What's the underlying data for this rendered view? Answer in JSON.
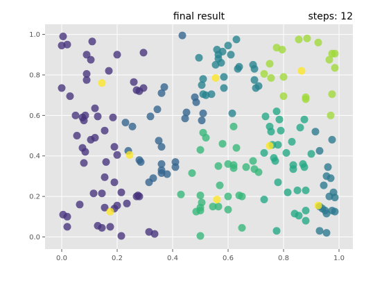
{
  "header": {
    "title": "final result",
    "steps": "steps: 12"
  },
  "chart_data": {
    "type": "scatter",
    "title": "final result",
    "subtitle": "steps: 12",
    "xlabel": "",
    "ylabel": "",
    "xlim": [
      -0.06,
      1.05
    ],
    "ylim": [
      -0.06,
      1.05
    ],
    "xticks": [
      0.0,
      0.2,
      0.4,
      0.6,
      0.8,
      1.0
    ],
    "yticks": [
      0.0,
      0.2,
      0.4,
      0.6,
      0.8,
      1.0
    ],
    "xtick_labels": [
      "0.0",
      "0.2",
      "0.4",
      "0.6",
      "0.8",
      "1.0"
    ],
    "ytick_labels": [
      "0.0",
      "0.2",
      "0.4",
      "0.6",
      "0.8",
      "1.0"
    ],
    "grid": true,
    "background": "#e5e5e5",
    "grid_color": "#ffffff",
    "marker_alpha": 0.78,
    "colormap": "viridis",
    "points": [
      {
        "x": 0.005,
        "y": 0.99,
        "color": "#46337e"
      },
      {
        "x": 0.02,
        "y": 0.95,
        "color": "#46337e"
      },
      {
        "x": 0.0,
        "y": 0.945,
        "color": "#46337e"
      },
      {
        "x": 0.11,
        "y": 0.965,
        "color": "#46337e"
      },
      {
        "x": 0.2,
        "y": 0.9,
        "color": "#46337e"
      },
      {
        "x": 0.09,
        "y": 0.9,
        "color": "#46337e"
      },
      {
        "x": 0.105,
        "y": 0.875,
        "color": "#46337e"
      },
      {
        "x": 0.295,
        "y": 0.91,
        "color": "#46337e"
      },
      {
        "x": 0.17,
        "y": 0.82,
        "color": "#46337e"
      },
      {
        "x": 0.09,
        "y": 0.805,
        "color": "#46337e"
      },
      {
        "x": 0.09,
        "y": 0.775,
        "color": "#46337e"
      },
      {
        "x": 0.0,
        "y": 0.735,
        "color": "#46337e"
      },
      {
        "x": 0.03,
        "y": 0.695,
        "color": "#46337e"
      },
      {
        "x": 0.26,
        "y": 0.765,
        "color": "#46337e"
      },
      {
        "x": 0.27,
        "y": 0.725,
        "color": "#46337e"
      },
      {
        "x": 0.28,
        "y": 0.72,
        "color": "#46337e"
      },
      {
        "x": 0.295,
        "y": 0.735,
        "color": "#46337e"
      },
      {
        "x": 0.12,
        "y": 0.635,
        "color": "#46337e"
      },
      {
        "x": 0.05,
        "y": 0.6,
        "color": "#46337e"
      },
      {
        "x": 0.075,
        "y": 0.59,
        "color": "#46337e"
      },
      {
        "x": 0.085,
        "y": 0.6,
        "color": "#46337e"
      },
      {
        "x": 0.08,
        "y": 0.575,
        "color": "#46337e"
      },
      {
        "x": 0.13,
        "y": 0.595,
        "color": "#46337e"
      },
      {
        "x": 0.185,
        "y": 0.59,
        "color": "#46337e"
      },
      {
        "x": 0.155,
        "y": 0.525,
        "color": "#46337e"
      },
      {
        "x": 0.055,
        "y": 0.5,
        "color": "#46337e"
      },
      {
        "x": 0.105,
        "y": 0.48,
        "color": "#46337e"
      },
      {
        "x": 0.12,
        "y": 0.49,
        "color": "#46337e"
      },
      {
        "x": 0.075,
        "y": 0.44,
        "color": "#46337e"
      },
      {
        "x": 0.085,
        "y": 0.42,
        "color": "#46337e"
      },
      {
        "x": 0.08,
        "y": 0.365,
        "color": "#46337e"
      },
      {
        "x": 0.19,
        "y": 0.445,
        "color": "#46337e"
      },
      {
        "x": 0.16,
        "y": 0.37,
        "color": "#46337e"
      },
      {
        "x": 0.2,
        "y": 0.405,
        "color": "#46337e"
      },
      {
        "x": 0.155,
        "y": 0.295,
        "color": "#46337e"
      },
      {
        "x": 0.19,
        "y": 0.27,
        "color": "#46337e"
      },
      {
        "x": 0.02,
        "y": 0.1,
        "color": "#46337e"
      },
      {
        "x": 0.005,
        "y": 0.11,
        "color": "#46337e"
      },
      {
        "x": 0.02,
        "y": 0.05,
        "color": "#46337e"
      },
      {
        "x": 0.065,
        "y": 0.16,
        "color": "#46337e"
      },
      {
        "x": 0.115,
        "y": 0.215,
        "color": "#46337e"
      },
      {
        "x": 0.145,
        "y": 0.215,
        "color": "#46337e"
      },
      {
        "x": 0.215,
        "y": 0.22,
        "color": "#46337e"
      },
      {
        "x": 0.235,
        "y": 0.165,
        "color": "#46337e"
      },
      {
        "x": 0.2,
        "y": 0.155,
        "color": "#46337e"
      },
      {
        "x": 0.19,
        "y": 0.14,
        "color": "#46337e"
      },
      {
        "x": 0.155,
        "y": 0.145,
        "color": "#46337e"
      },
      {
        "x": 0.13,
        "y": 0.055,
        "color": "#46337e"
      },
      {
        "x": 0.145,
        "y": 0.045,
        "color": "#46337e"
      },
      {
        "x": 0.175,
        "y": 0.05,
        "color": "#46337e"
      },
      {
        "x": 0.215,
        "y": 0.005,
        "color": "#46337e"
      },
      {
        "x": 0.27,
        "y": 0.2,
        "color": "#46337e"
      },
      {
        "x": 0.275,
        "y": 0.205,
        "color": "#46337e"
      },
      {
        "x": 0.28,
        "y": 0.2,
        "color": "#46337e"
      },
      {
        "x": 0.315,
        "y": 0.025,
        "color": "#46337e"
      },
      {
        "x": 0.335,
        "y": 0.015,
        "color": "#46337e"
      },
      {
        "x": 0.23,
        "y": 0.565,
        "color": "#32648e"
      },
      {
        "x": 0.255,
        "y": 0.545,
        "color": "#32648e"
      },
      {
        "x": 0.32,
        "y": 0.595,
        "color": "#32648e"
      },
      {
        "x": 0.345,
        "y": 0.63,
        "color": "#32648e"
      },
      {
        "x": 0.36,
        "y": 0.71,
        "color": "#32648e"
      },
      {
        "x": 0.37,
        "y": 0.74,
        "color": "#32648e"
      },
      {
        "x": 0.35,
        "y": 0.475,
        "color": "#32648e"
      },
      {
        "x": 0.36,
        "y": 0.445,
        "color": "#32648e"
      },
      {
        "x": 0.24,
        "y": 0.425,
        "color": "#32648e"
      },
      {
        "x": 0.28,
        "y": 0.38,
        "color": "#32648e"
      },
      {
        "x": 0.285,
        "y": 0.37,
        "color": "#32648e"
      },
      {
        "x": 0.36,
        "y": 0.36,
        "color": "#32648e"
      },
      {
        "x": 0.36,
        "y": 0.33,
        "color": "#32648e"
      },
      {
        "x": 0.36,
        "y": 0.315,
        "color": "#32648e"
      },
      {
        "x": 0.38,
        "y": 0.31,
        "color": "#32648e"
      },
      {
        "x": 0.41,
        "y": 0.345,
        "color": "#32648e"
      },
      {
        "x": 0.41,
        "y": 0.37,
        "color": "#32648e"
      },
      {
        "x": 0.33,
        "y": 0.29,
        "color": "#32648e"
      },
      {
        "x": 0.315,
        "y": 0.27,
        "color": "#32648e"
      },
      {
        "x": 0.435,
        "y": 0.995,
        "color": "#32648e"
      },
      {
        "x": 0.445,
        "y": 0.585,
        "color": "#32648e"
      },
      {
        "x": 0.45,
        "y": 0.615,
        "color": "#32648e"
      },
      {
        "x": 0.48,
        "y": 0.69,
        "color": "#32648e"
      },
      {
        "x": 0.485,
        "y": 0.665,
        "color": "#32648e"
      },
      {
        "x": 0.505,
        "y": 0.575,
        "color": "#32648e"
      },
      {
        "x": 0.51,
        "y": 0.61,
        "color": "#32648e"
      },
      {
        "x": 0.495,
        "y": 0.885,
        "color": "#25838e"
      },
      {
        "x": 0.505,
        "y": 0.75,
        "color": "#25838e"
      },
      {
        "x": 0.51,
        "y": 0.78,
        "color": "#25838e"
      },
      {
        "x": 0.51,
        "y": 0.705,
        "color": "#25838e"
      },
      {
        "x": 0.52,
        "y": 0.7,
        "color": "#25838e"
      },
      {
        "x": 0.54,
        "y": 0.705,
        "color": "#25838e"
      },
      {
        "x": 0.56,
        "y": 0.925,
        "color": "#25838e"
      },
      {
        "x": 0.565,
        "y": 0.9,
        "color": "#25838e"
      },
      {
        "x": 0.58,
        "y": 0.915,
        "color": "#25838e"
      },
      {
        "x": 0.555,
        "y": 0.85,
        "color": "#25838e"
      },
      {
        "x": 0.575,
        "y": 0.86,
        "color": "#25838e"
      },
      {
        "x": 0.565,
        "y": 0.88,
        "color": "#25838e"
      },
      {
        "x": 0.6,
        "y": 0.945,
        "color": "#25838e"
      },
      {
        "x": 0.61,
        "y": 0.9,
        "color": "#25838e"
      },
      {
        "x": 0.63,
        "y": 0.975,
        "color": "#25838e"
      },
      {
        "x": 0.635,
        "y": 0.83,
        "color": "#25838e"
      },
      {
        "x": 0.64,
        "y": 0.84,
        "color": "#25838e"
      },
      {
        "x": 0.585,
        "y": 0.79,
        "color": "#25838e"
      },
      {
        "x": 0.585,
        "y": 0.735,
        "color": "#25838e"
      },
      {
        "x": 0.615,
        "y": 0.61,
        "color": "#25838e"
      },
      {
        "x": 0.69,
        "y": 0.85,
        "color": "#25838e"
      },
      {
        "x": 0.695,
        "y": 0.83,
        "color": "#25838e"
      },
      {
        "x": 0.695,
        "y": 0.775,
        "color": "#25838e"
      },
      {
        "x": 0.7,
        "y": 0.735,
        "color": "#25838e"
      },
      {
        "x": 0.71,
        "y": 0.745,
        "color": "#25838e"
      },
      {
        "x": 0.5,
        "y": 0.43,
        "color": "#35b779"
      },
      {
        "x": 0.51,
        "y": 0.515,
        "color": "#35b779"
      },
      {
        "x": 0.52,
        "y": 0.49,
        "color": "#35b779"
      },
      {
        "x": 0.58,
        "y": 0.46,
        "color": "#35b779"
      },
      {
        "x": 0.62,
        "y": 0.545,
        "color": "#35b779"
      },
      {
        "x": 0.63,
        "y": 0.44,
        "color": "#35b779"
      },
      {
        "x": 0.565,
        "y": 0.35,
        "color": "#35b779"
      },
      {
        "x": 0.6,
        "y": 0.36,
        "color": "#35b779"
      },
      {
        "x": 0.62,
        "y": 0.34,
        "color": "#35b779"
      },
      {
        "x": 0.62,
        "y": 0.355,
        "color": "#35b779"
      },
      {
        "x": 0.665,
        "y": 0.345,
        "color": "#35b779"
      },
      {
        "x": 0.69,
        "y": 0.375,
        "color": "#35b779"
      },
      {
        "x": 0.695,
        "y": 0.335,
        "color": "#35b779"
      },
      {
        "x": 0.71,
        "y": 0.32,
        "color": "#35b779"
      },
      {
        "x": 0.57,
        "y": 0.255,
        "color": "#35b779"
      },
      {
        "x": 0.47,
        "y": 0.315,
        "color": "#35b779"
      },
      {
        "x": 0.43,
        "y": 0.21,
        "color": "#35b779"
      },
      {
        "x": 0.5,
        "y": 0.205,
        "color": "#35b779"
      },
      {
        "x": 0.505,
        "y": 0.17,
        "color": "#35b779"
      },
      {
        "x": 0.5,
        "y": 0.145,
        "color": "#35b779"
      },
      {
        "x": 0.5,
        "y": 0.13,
        "color": "#35b779"
      },
      {
        "x": 0.485,
        "y": 0.125,
        "color": "#35b779"
      },
      {
        "x": 0.545,
        "y": 0.15,
        "color": "#35b779"
      },
      {
        "x": 0.565,
        "y": 0.15,
        "color": "#35b779"
      },
      {
        "x": 0.6,
        "y": 0.2,
        "color": "#35b779"
      },
      {
        "x": 0.6,
        "y": 0.135,
        "color": "#35b779"
      },
      {
        "x": 0.64,
        "y": 0.205,
        "color": "#35b779"
      },
      {
        "x": 0.65,
        "y": 0.2,
        "color": "#35b779"
      },
      {
        "x": 0.5,
        "y": 0.005,
        "color": "#35b779"
      },
      {
        "x": 0.65,
        "y": 0.045,
        "color": "#35b779"
      },
      {
        "x": 0.73,
        "y": 0.415,
        "color": "#22a884"
      },
      {
        "x": 0.735,
        "y": 0.595,
        "color": "#22a884"
      },
      {
        "x": 0.75,
        "y": 0.545,
        "color": "#22a884"
      },
      {
        "x": 0.755,
        "y": 0.52,
        "color": "#22a884"
      },
      {
        "x": 0.775,
        "y": 0.62,
        "color": "#22a884"
      },
      {
        "x": 0.785,
        "y": 0.58,
        "color": "#22a884"
      },
      {
        "x": 0.79,
        "y": 0.525,
        "color": "#22a884"
      },
      {
        "x": 0.76,
        "y": 0.455,
        "color": "#22a884"
      },
      {
        "x": 0.765,
        "y": 0.39,
        "color": "#22a884"
      },
      {
        "x": 0.77,
        "y": 0.375,
        "color": "#22a884"
      },
      {
        "x": 0.78,
        "y": 0.455,
        "color": "#22a884"
      },
      {
        "x": 0.81,
        "y": 0.415,
        "color": "#22a884"
      },
      {
        "x": 0.83,
        "y": 0.47,
        "color": "#22a884"
      },
      {
        "x": 0.835,
        "y": 0.355,
        "color": "#22a884"
      },
      {
        "x": 0.835,
        "y": 0.335,
        "color": "#22a884"
      },
      {
        "x": 0.86,
        "y": 0.54,
        "color": "#22a884"
      },
      {
        "x": 0.875,
        "y": 0.58,
        "color": "#22a884"
      },
      {
        "x": 0.87,
        "y": 0.36,
        "color": "#22a884"
      },
      {
        "x": 0.875,
        "y": 0.345,
        "color": "#22a884"
      },
      {
        "x": 0.9,
        "y": 0.41,
        "color": "#22a884"
      },
      {
        "x": 0.73,
        "y": 0.185,
        "color": "#22a884"
      },
      {
        "x": 0.78,
        "y": 0.27,
        "color": "#22a884"
      },
      {
        "x": 0.815,
        "y": 0.22,
        "color": "#22a884"
      },
      {
        "x": 0.85,
        "y": 0.23,
        "color": "#22a884"
      },
      {
        "x": 0.88,
        "y": 0.23,
        "color": "#22a884"
      },
      {
        "x": 0.84,
        "y": 0.115,
        "color": "#22a884"
      },
      {
        "x": 0.855,
        "y": 0.105,
        "color": "#22a884"
      },
      {
        "x": 0.88,
        "y": 0.13,
        "color": "#22a884"
      },
      {
        "x": 0.88,
        "y": 0.08,
        "color": "#22a884"
      },
      {
        "x": 0.775,
        "y": 0.03,
        "color": "#22a884"
      },
      {
        "x": 0.915,
        "y": 0.52,
        "color": "#2a788e"
      },
      {
        "x": 0.93,
        "y": 0.425,
        "color": "#2a788e"
      },
      {
        "x": 0.975,
        "y": 0.48,
        "color": "#2a788e"
      },
      {
        "x": 0.96,
        "y": 0.345,
        "color": "#2a788e"
      },
      {
        "x": 0.955,
        "y": 0.3,
        "color": "#2a788e"
      },
      {
        "x": 0.945,
        "y": 0.255,
        "color": "#2a788e"
      },
      {
        "x": 0.97,
        "y": 0.29,
        "color": "#2a788e"
      },
      {
        "x": 0.965,
        "y": 0.2,
        "color": "#2a788e"
      },
      {
        "x": 0.98,
        "y": 0.22,
        "color": "#2a788e"
      },
      {
        "x": 0.985,
        "y": 0.195,
        "color": "#2a788e"
      },
      {
        "x": 0.93,
        "y": 0.15,
        "color": "#2a788e"
      },
      {
        "x": 0.94,
        "y": 0.14,
        "color": "#2a788e"
      },
      {
        "x": 0.95,
        "y": 0.13,
        "color": "#2a788e"
      },
      {
        "x": 0.955,
        "y": 0.115,
        "color": "#2a788e"
      },
      {
        "x": 0.975,
        "y": 0.13,
        "color": "#2a788e"
      },
      {
        "x": 0.985,
        "y": 0.125,
        "color": "#2a788e"
      },
      {
        "x": 0.93,
        "y": 0.03,
        "color": "#2a788e"
      },
      {
        "x": 0.955,
        "y": 0.02,
        "color": "#2a788e"
      },
      {
        "x": 0.73,
        "y": 0.805,
        "color": "#a0da39"
      },
      {
        "x": 0.75,
        "y": 0.855,
        "color": "#a0da39"
      },
      {
        "x": 0.775,
        "y": 0.935,
        "color": "#a0da39"
      },
      {
        "x": 0.795,
        "y": 0.925,
        "color": "#a0da39"
      },
      {
        "x": 0.755,
        "y": 0.785,
        "color": "#a0da39"
      },
      {
        "x": 0.8,
        "y": 0.79,
        "color": "#a0da39"
      },
      {
        "x": 0.8,
        "y": 0.695,
        "color": "#a0da39"
      },
      {
        "x": 0.855,
        "y": 0.975,
        "color": "#a0da39"
      },
      {
        "x": 0.885,
        "y": 0.98,
        "color": "#a0da39"
      },
      {
        "x": 0.925,
        "y": 0.96,
        "color": "#a0da39"
      },
      {
        "x": 0.975,
        "y": 0.905,
        "color": "#a0da39"
      },
      {
        "x": 0.985,
        "y": 0.905,
        "color": "#a0da39"
      },
      {
        "x": 0.965,
        "y": 0.875,
        "color": "#a0da39"
      },
      {
        "x": 0.985,
        "y": 0.835,
        "color": "#a0da39"
      },
      {
        "x": 0.975,
        "y": 0.705,
        "color": "#a0da39"
      },
      {
        "x": 0.88,
        "y": 0.69,
        "color": "#a0da39"
      },
      {
        "x": 0.88,
        "y": 0.68,
        "color": "#a0da39"
      },
      {
        "x": 0.97,
        "y": 0.6,
        "color": "#a0da39"
      },
      {
        "x": 0.145,
        "y": 0.76,
        "color": "#fde725"
      },
      {
        "x": 0.175,
        "y": 0.125,
        "color": "#fde725"
      },
      {
        "x": 0.245,
        "y": 0.405,
        "color": "#fde725"
      },
      {
        "x": 0.555,
        "y": 0.785,
        "color": "#fde725"
      },
      {
        "x": 0.56,
        "y": 0.185,
        "color": "#fde725"
      },
      {
        "x": 0.75,
        "y": 0.45,
        "color": "#fde725"
      },
      {
        "x": 0.865,
        "y": 0.82,
        "color": "#fde725"
      },
      {
        "x": 0.925,
        "y": 0.155,
        "color": "#fde725"
      }
    ]
  }
}
